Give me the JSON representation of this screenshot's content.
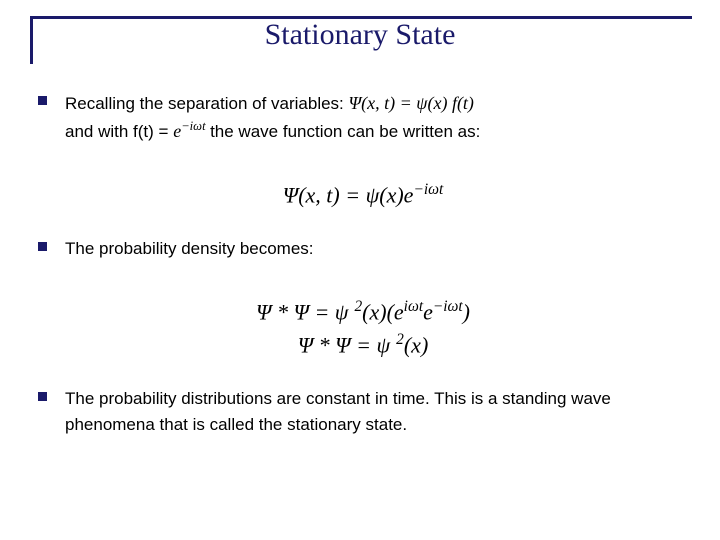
{
  "slide": {
    "title": "Stationary State",
    "title_color": "#1a1a6a",
    "title_fontsize": 30,
    "border_color": "#1a1a6a",
    "bullet_color": "#1a1a6a",
    "background_color": "#ffffff",
    "body_fontsize": 17
  },
  "bullets": [
    {
      "line1_a": "Recalling the separation of variables:  ",
      "eq1": "Ψ(x, t) = ψ(x) f(t)",
      "line2_a": "and with  f(t) = ",
      "eq2": "e",
      "eq2_sup": "−iωt",
      "line2_b": "    the wave function can be written as:",
      "centered_eq_l1_a": "Ψ(x, t) = ψ(x)e",
      "centered_eq_l1_sup": "−iωt"
    },
    {
      "text": "The probability density becomes:",
      "eq_l1_a": "Ψ * Ψ = ψ",
      "eq_l1_sup1": "2",
      "eq_l1_b": "(x)(e",
      "eq_l1_sup2": "iωt",
      "eq_l1_c": "e",
      "eq_l1_sup3": "−iωt",
      "eq_l1_d": ")",
      "eq_l2_a": "Ψ * Ψ = ψ",
      "eq_l2_sup": "2",
      "eq_l2_b": "(x)"
    },
    {
      "text": "The probability distributions are constant in time. This is a standing wave phenomena that is called the stationary state."
    }
  ]
}
